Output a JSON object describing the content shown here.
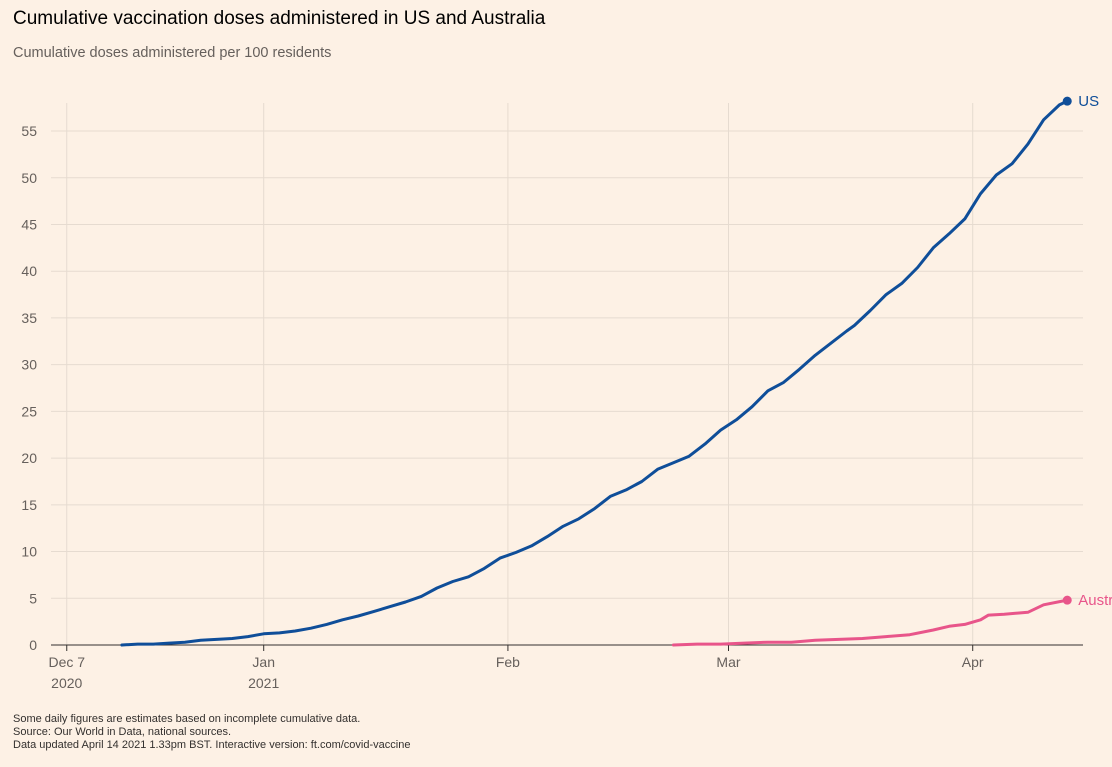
{
  "header": {
    "title": "Cumulative vaccination doses administered in US and Australia",
    "subtitle": "Cumulative doses administered per 100 residents"
  },
  "footer": {
    "note": "Some daily figures are estimates based on incomplete cumulative data.",
    "source": "Source: Our World in Data, national sources.",
    "updated": "Data updated April 14 2021 1.33pm BST. Interactive version: ft.com/covid-vaccine"
  },
  "colors": {
    "background": "#fdf1e5",
    "grid": "#e6dbd0",
    "axis": "#33302e",
    "us": "#0f4e99",
    "australia": "#e8558a"
  },
  "chart_data": {
    "type": "line",
    "title": "Cumulative vaccination doses administered in US and Australia",
    "subtitle": "Cumulative doses administered per 100 residents",
    "xlabel": "",
    "ylabel": "Cumulative doses administered per 100 residents",
    "x_unit": "days since 2020-12-07",
    "xlim": [
      -2,
      129
    ],
    "ylim": [
      0,
      58
    ],
    "yticks": [
      0,
      5,
      10,
      15,
      20,
      25,
      30,
      35,
      40,
      45,
      50,
      55
    ],
    "xticks": [
      {
        "day": 0,
        "label": "Dec 7",
        "sublabel": "2020"
      },
      {
        "day": 25,
        "label": "Jan",
        "sublabel": "2021"
      },
      {
        "day": 56,
        "label": "Feb",
        "sublabel": ""
      },
      {
        "day": 84,
        "label": "Mar",
        "sublabel": ""
      },
      {
        "day": 115,
        "label": "Apr",
        "sublabel": ""
      }
    ],
    "grid": true,
    "series": [
      {
        "name": "US",
        "label": "US",
        "x": [
          7,
          9,
          11,
          13,
          15,
          17,
          19,
          21,
          23,
          25,
          27,
          29,
          31,
          33,
          35,
          37,
          39,
          41,
          43,
          45,
          47,
          49,
          51,
          53,
          55,
          57,
          59,
          61,
          63,
          65,
          67,
          69,
          71,
          73,
          75,
          77,
          79,
          81,
          83,
          85,
          87,
          89,
          91,
          93,
          95,
          97,
          99,
          100,
          102,
          104,
          106,
          108,
          110,
          112,
          114,
          116,
          118,
          120,
          122,
          124,
          126,
          127
        ],
        "values": [
          0.0,
          0.1,
          0.1,
          0.2,
          0.3,
          0.5,
          0.6,
          0.7,
          0.9,
          1.2,
          1.3,
          1.5,
          1.8,
          2.2,
          2.7,
          3.1,
          3.6,
          4.1,
          4.6,
          5.2,
          6.1,
          6.8,
          7.3,
          8.2,
          9.3,
          9.9,
          10.6,
          11.6,
          12.7,
          13.5,
          14.6,
          15.9,
          16.6,
          17.5,
          18.8,
          19.5,
          20.2,
          21.5,
          23.0,
          24.1,
          25.5,
          27.2,
          28.1,
          29.5,
          31.0,
          32.3,
          33.6,
          34.2,
          35.8,
          37.5,
          38.7,
          40.4,
          42.5,
          44.0,
          45.6,
          48.3,
          50.3,
          51.5,
          53.6,
          56.2,
          57.8,
          58.2
        ],
        "color": "#0f4e99"
      },
      {
        "name": "Australia",
        "label": "Australia",
        "x": [
          77,
          80,
          83,
          86,
          89,
          92,
          95,
          98,
          101,
          104,
          107,
          110,
          112,
          114,
          116,
          117,
          119,
          122,
          124,
          127
        ],
        "values": [
          0.0,
          0.1,
          0.1,
          0.2,
          0.3,
          0.3,
          0.5,
          0.6,
          0.7,
          0.9,
          1.1,
          1.6,
          2.0,
          2.2,
          2.7,
          3.2,
          3.3,
          3.5,
          4.3,
          4.8
        ],
        "color": "#e8558a"
      }
    ]
  }
}
